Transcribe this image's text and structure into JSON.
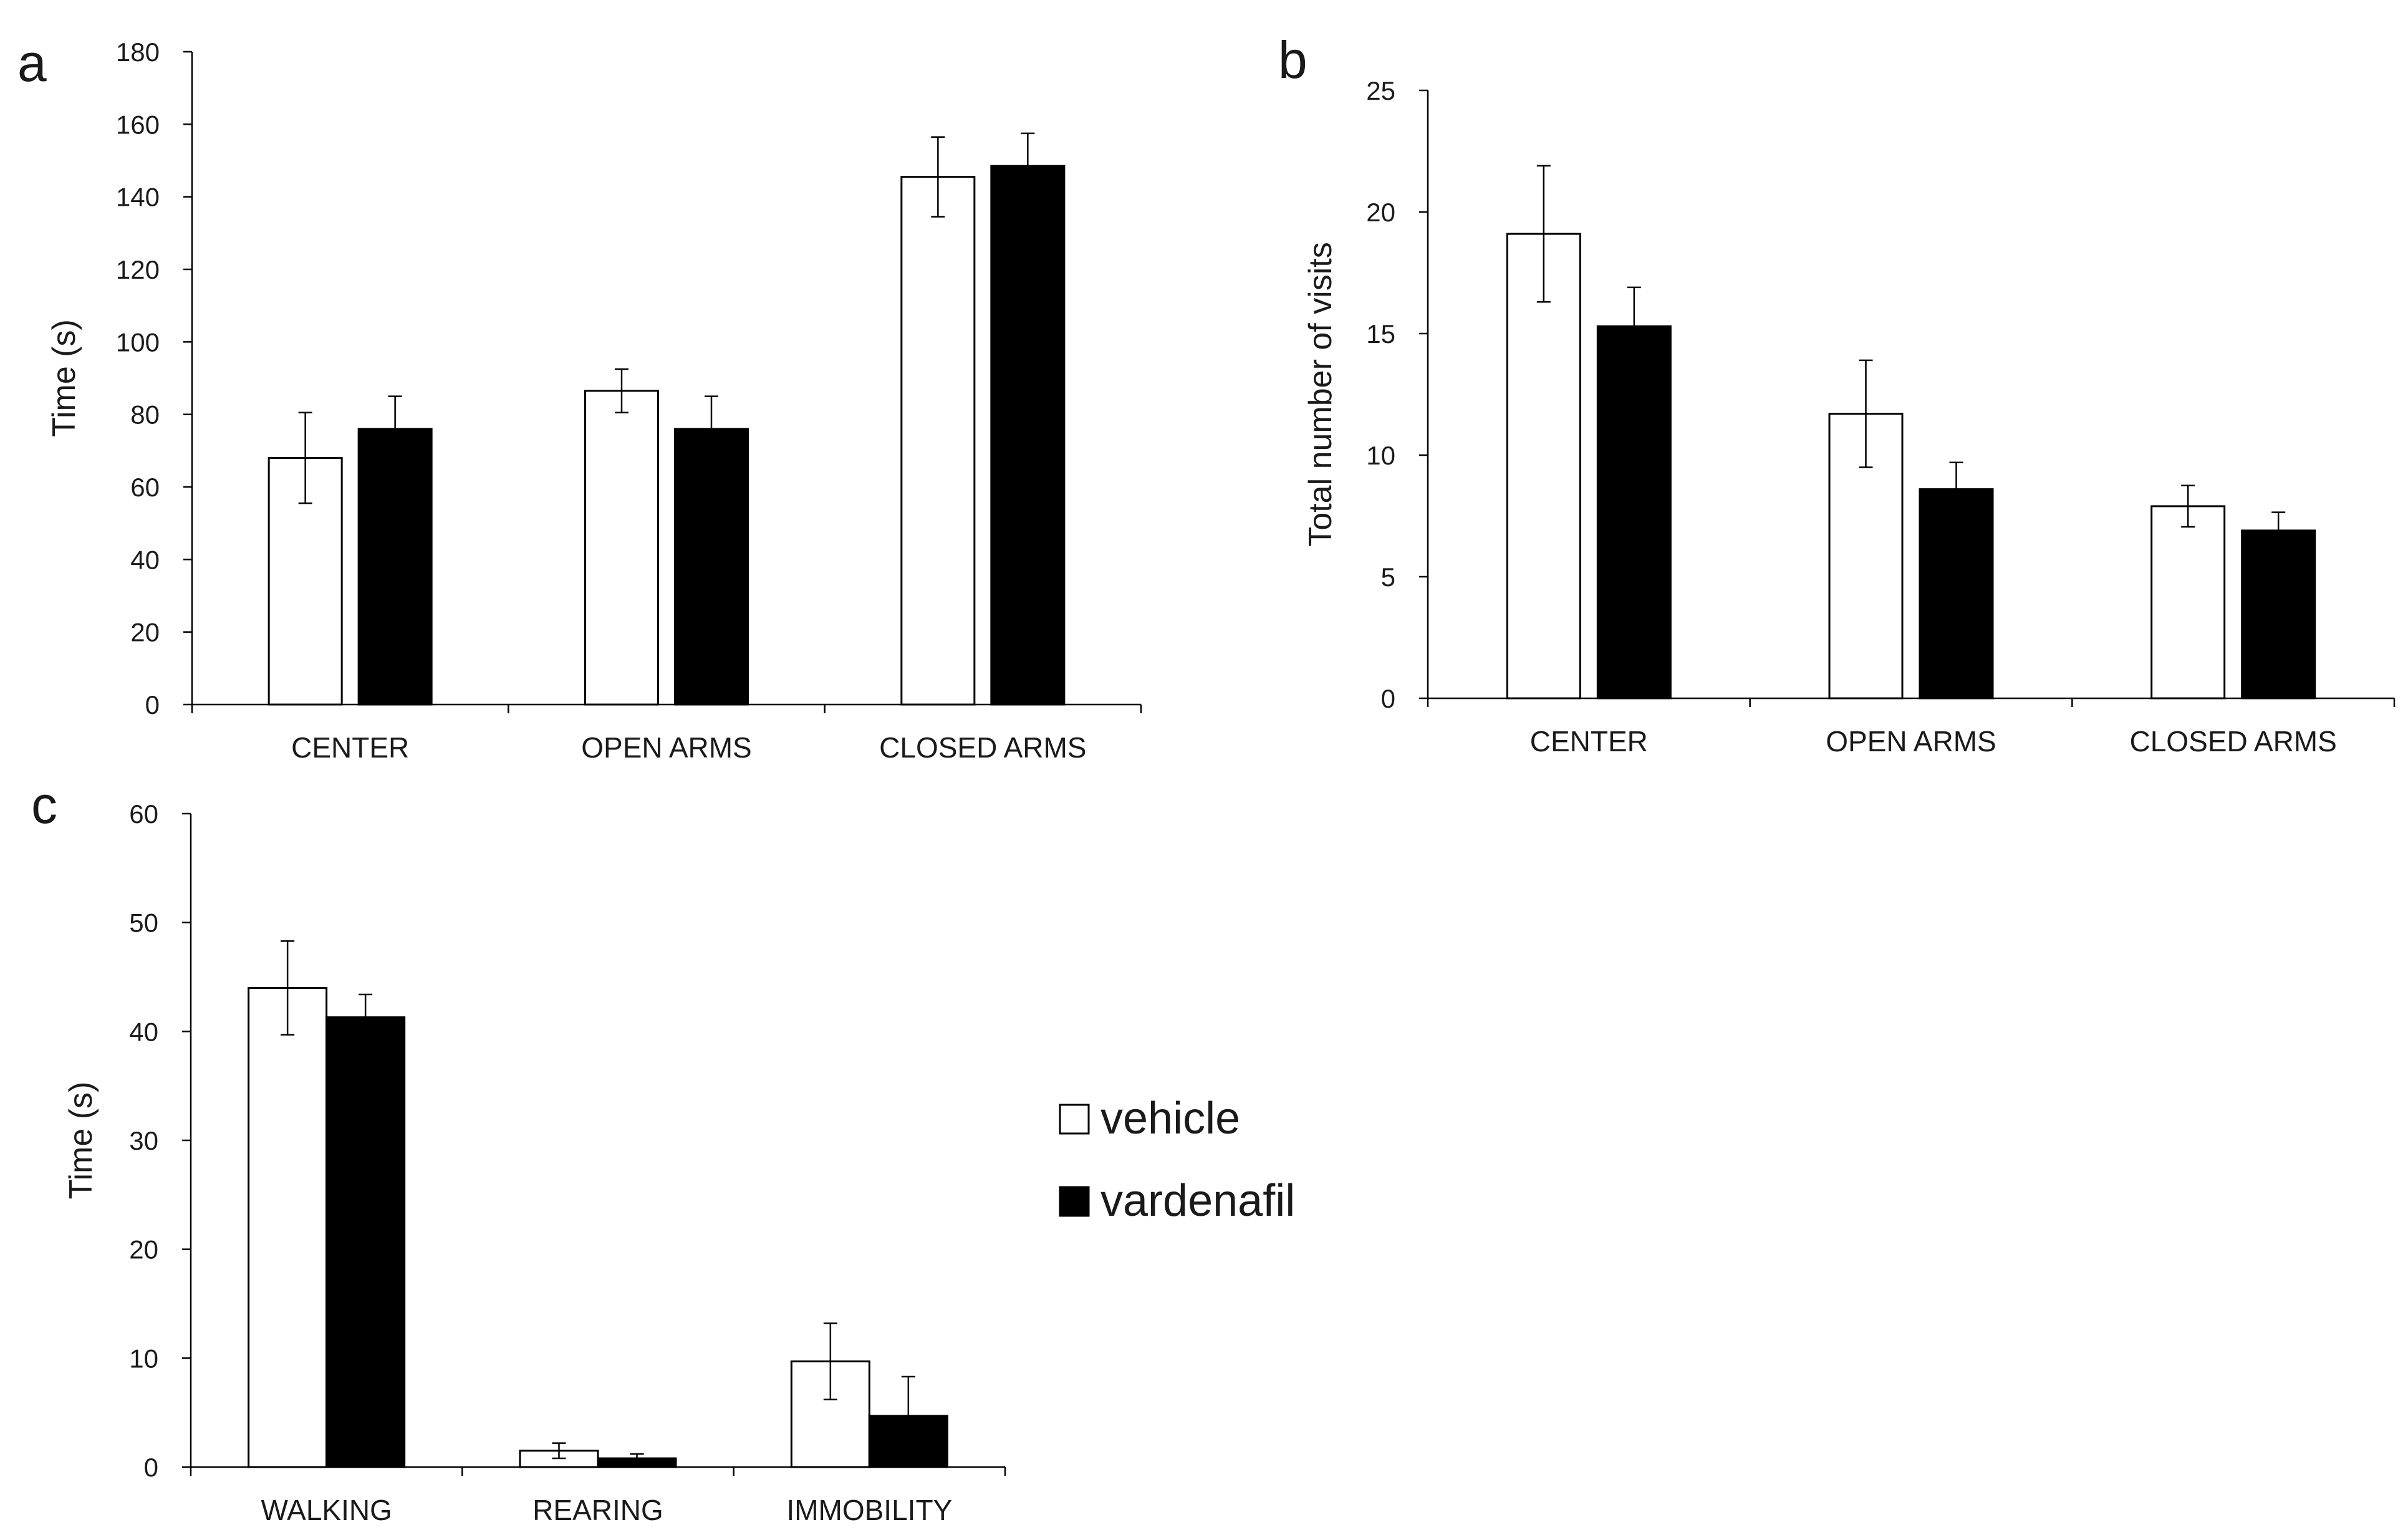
{
  "figure": {
    "legend": [
      {
        "label": "vehicle",
        "fill": "#ffffff"
      },
      {
        "label": "vardenafil",
        "fill": "#000000"
      }
    ]
  },
  "chart_data": [
    {
      "panel": "a",
      "type": "bar",
      "ylabel": "Time (s)",
      "xlabel": "",
      "ylim": [
        0,
        180
      ],
      "yticks": [
        0,
        20,
        40,
        60,
        80,
        100,
        120,
        140,
        160,
        180
      ],
      "categories": [
        "CENTER",
        "OPEN ARMS",
        "CLOSED ARMS"
      ],
      "series": [
        {
          "name": "vehicle",
          "color": "#ffffff",
          "values": [
            68,
            86.5,
            145.5
          ],
          "errors": [
            12.5,
            6,
            11
          ]
        },
        {
          "name": "vardenafil",
          "color": "#000000",
          "values": [
            76,
            76,
            148.5
          ],
          "errors": [
            9,
            9,
            9
          ]
        }
      ]
    },
    {
      "panel": "b",
      "type": "bar",
      "ylabel": "Total number of visits",
      "xlabel": "",
      "ylim": [
        0,
        25
      ],
      "yticks": [
        0,
        5,
        10,
        15,
        20,
        25
      ],
      "categories": [
        "CENTER",
        "OPEN ARMS",
        "CLOSED ARMS"
      ],
      "series": [
        {
          "name": "vehicle",
          "color": "#ffffff",
          "values": [
            19.1,
            11.7,
            7.9
          ],
          "errors": [
            2.8,
            2.2,
            0.85
          ]
        },
        {
          "name": "vardenafil",
          "color": "#000000",
          "values": [
            15.3,
            8.6,
            6.9
          ],
          "errors": [
            1.6,
            1.1,
            0.75
          ]
        }
      ]
    },
    {
      "panel": "c",
      "type": "bar",
      "ylabel": "Time (s)",
      "xlabel": "",
      "ylim": [
        0,
        60
      ],
      "yticks": [
        0,
        10,
        20,
        30,
        40,
        50,
        60
      ],
      "categories": [
        "WALKING",
        "REARING",
        "IMMOBILITY"
      ],
      "series": [
        {
          "name": "vehicle",
          "color": "#ffffff",
          "values": [
            44,
            1.5,
            9.7
          ],
          "errors": [
            4.3,
            0.7,
            3.5
          ]
        },
        {
          "name": "vardenafil",
          "color": "#000000",
          "values": [
            41.3,
            0.8,
            4.7
          ],
          "errors": [
            2.1,
            0.4,
            3.6
          ]
        }
      ]
    }
  ]
}
